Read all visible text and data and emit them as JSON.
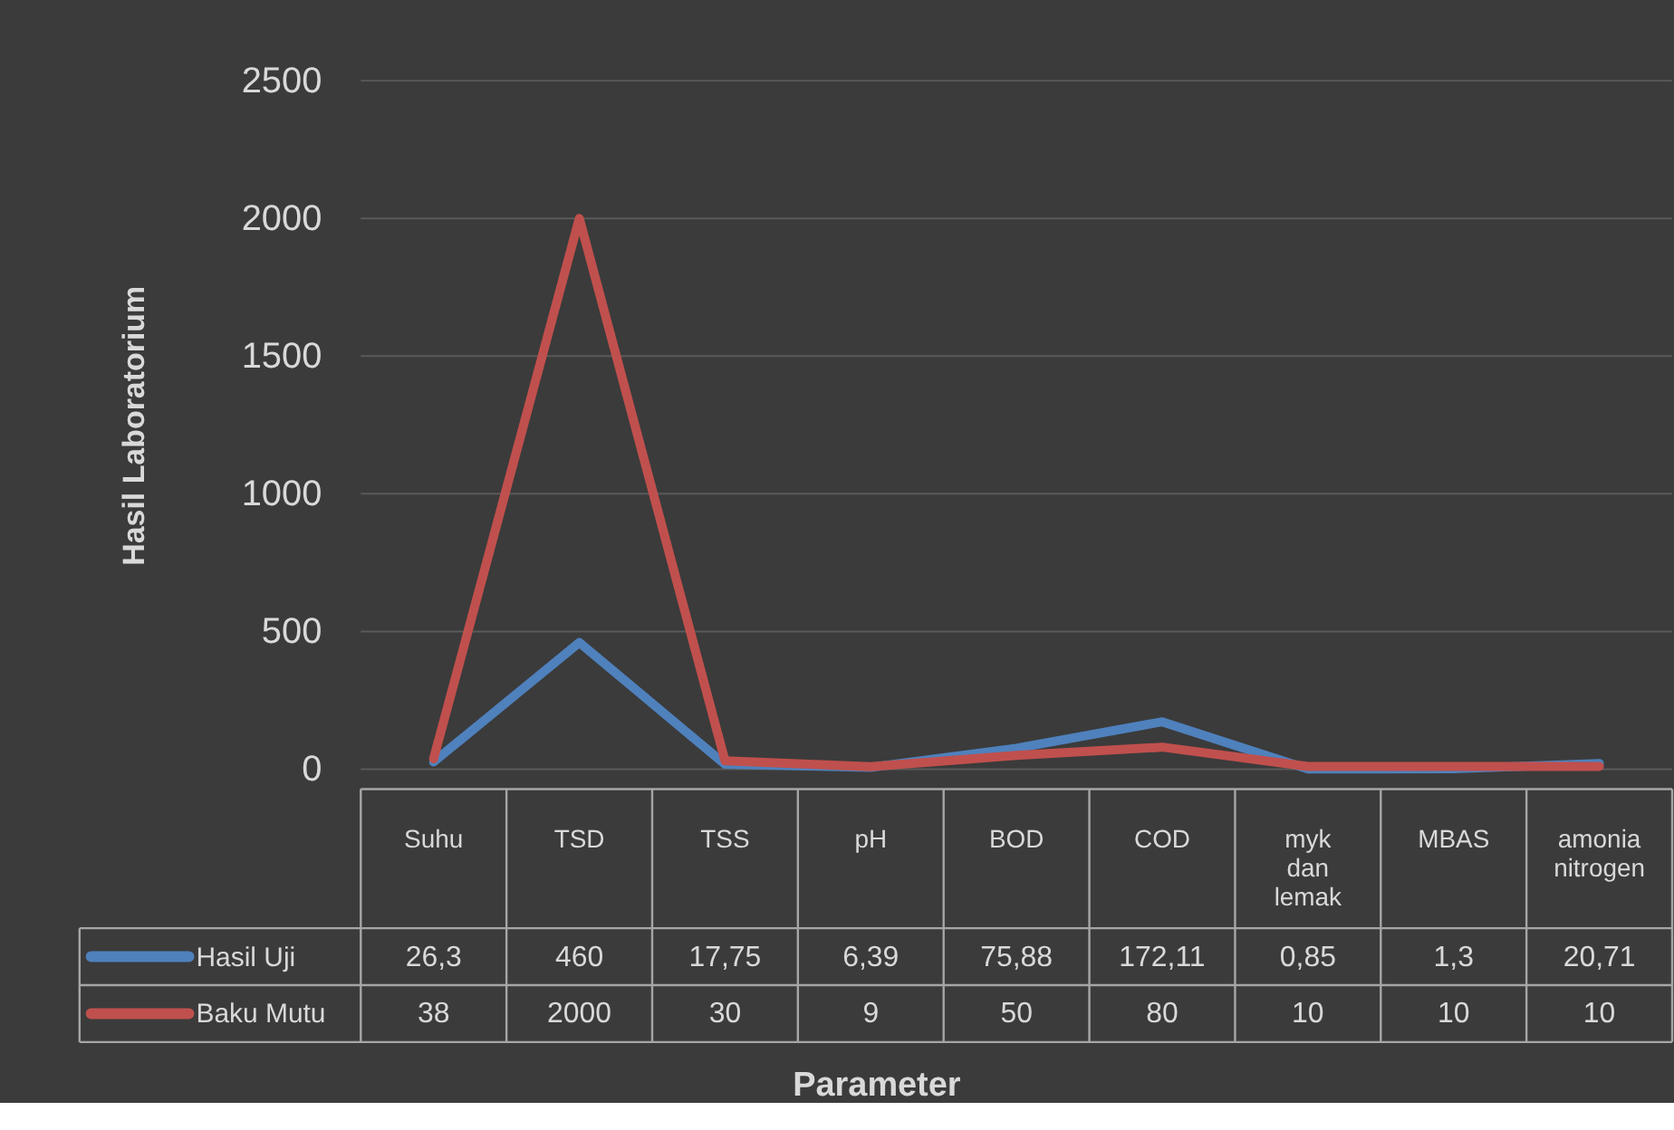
{
  "chart_data": {
    "type": "line",
    "xlabel": "Parameter",
    "ylabel": "Hasil Laboratorium",
    "categories": [
      "Suhu",
      "TSD",
      "TSS",
      "pH",
      "BOD",
      "COD",
      "myk dan lemak",
      "MBAS",
      "amonia nitrogen"
    ],
    "series": [
      {
        "name": "Hasil Uji",
        "color": "#4f81bd",
        "values": [
          26.3,
          460,
          17.75,
          6.39,
          75.88,
          172.11,
          0.85,
          1.3,
          20.71
        ],
        "value_labels": [
          "26,3",
          "460",
          "17,75",
          "6,39",
          "75,88",
          "172,11",
          "0,85",
          "1,3",
          "20,71"
        ]
      },
      {
        "name": "Baku Mutu",
        "color": "#c0504d",
        "values": [
          38,
          2000,
          30,
          9,
          50,
          80,
          10,
          10,
          10
        ],
        "value_labels": [
          "38",
          "2000",
          "30",
          "9",
          "50",
          "80",
          "10",
          "10",
          "10"
        ]
      }
    ],
    "ylim": [
      0,
      2500
    ],
    "yticks": [
      0,
      500,
      1000,
      1500,
      2000,
      2500
    ],
    "grid": "y",
    "legend": "bottom left",
    "marker": "none",
    "line_style": "solid"
  }
}
